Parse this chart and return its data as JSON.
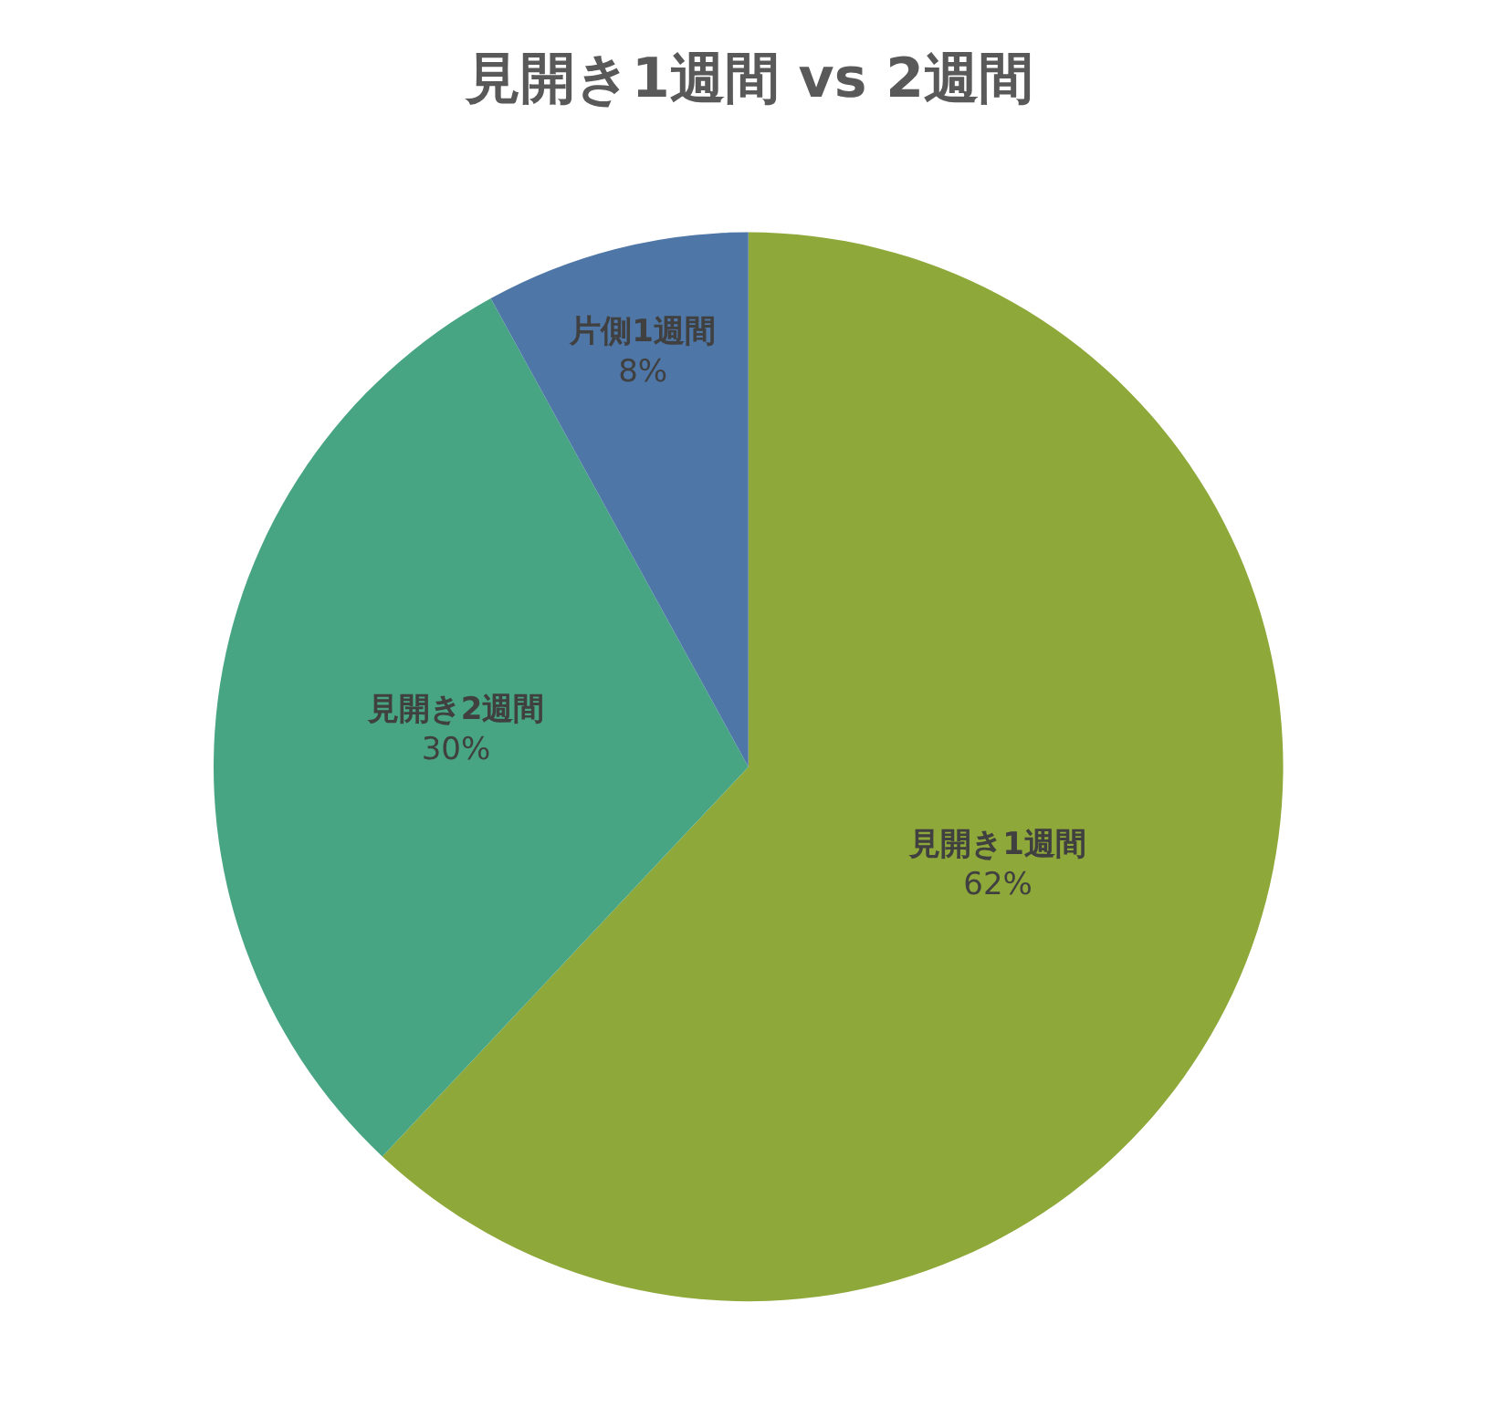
{
  "chart_data": {
    "type": "pie",
    "title": "見開き1週間 vs 2週間",
    "categories": [
      "見開き1週間",
      "見開き2週間",
      "片側1週間"
    ],
    "values": [
      62,
      30,
      8
    ],
    "value_labels": [
      "62%",
      "30%",
      "8%"
    ],
    "colors": [
      "#8fa83a",
      "#47a583",
      "#4e76a6"
    ],
    "legend": false
  }
}
